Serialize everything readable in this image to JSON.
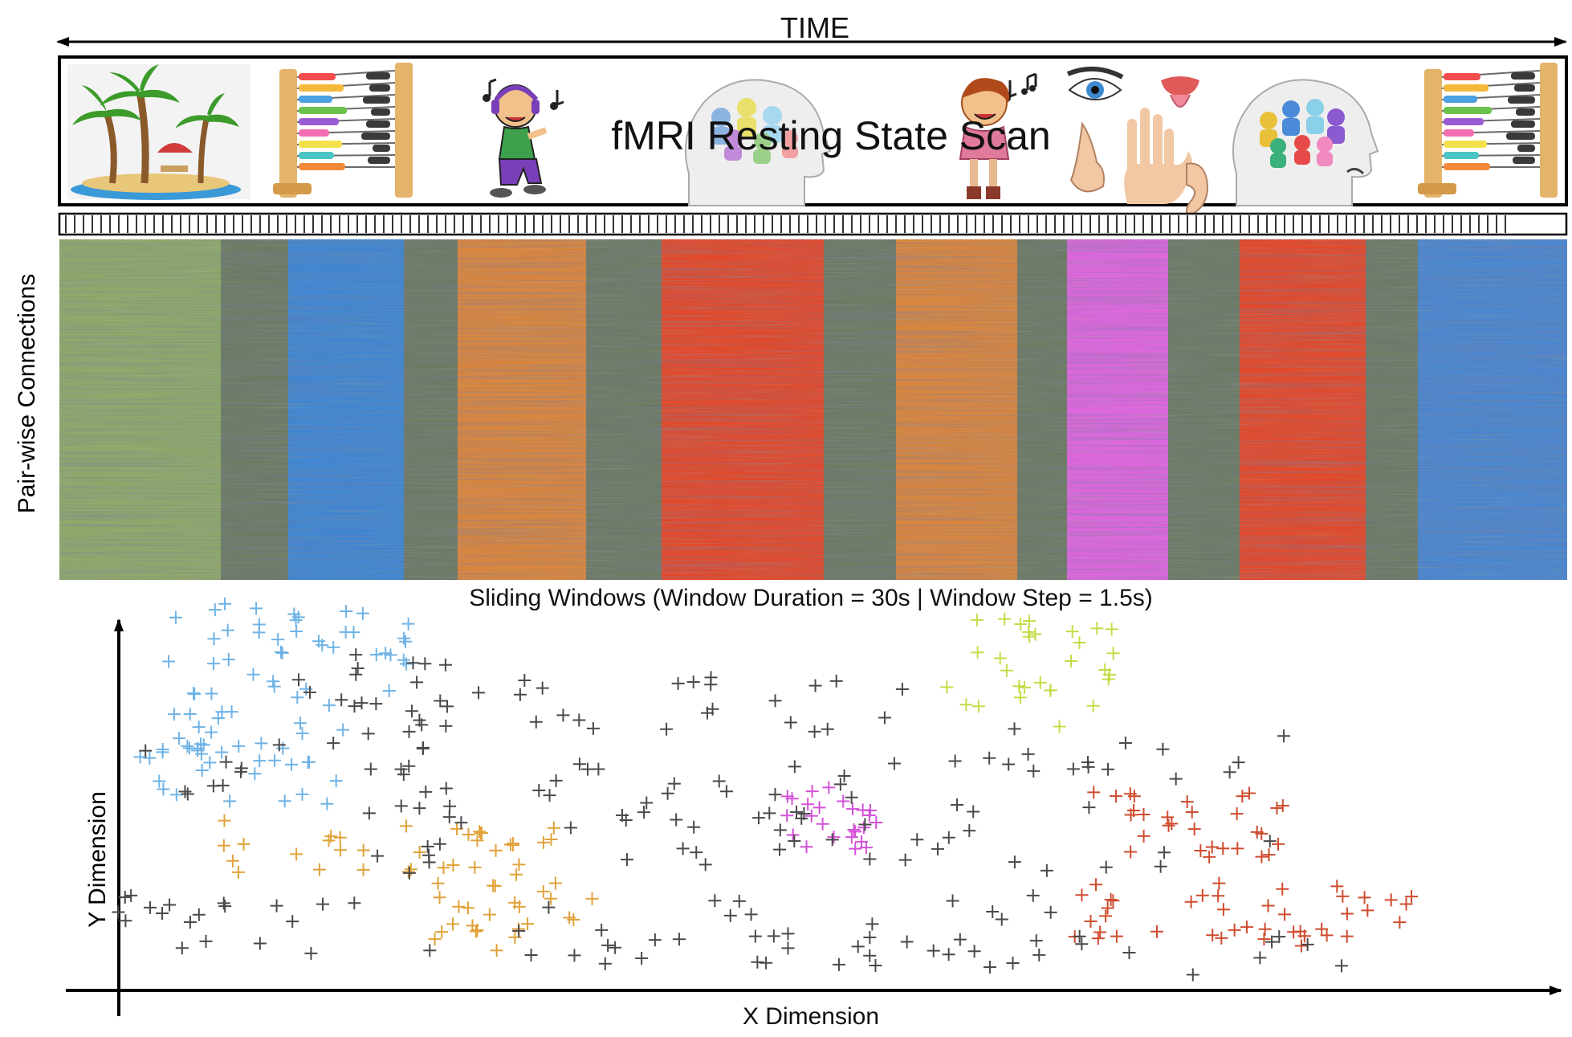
{
  "header": {
    "time_label": "TIME"
  },
  "scan_banner": {
    "title": "fMRI Resting State Scan",
    "icons": [
      "palm-island-icon",
      "abacus-icon",
      "music-listener-icon",
      "social-thoughts-head-icon",
      "singing-person-icon",
      "senses-icon",
      "crowded-thoughts-head-icon",
      "abacus-icon"
    ]
  },
  "heatmap": {
    "y_axis_label": "Pair-wise Connections",
    "x_axis_label": "Sliding Windows (Window Duration = 30s | Window Step = 1.5s)",
    "segments": [
      {
        "color": "#8fa86a"
      },
      {
        "color": "#6e7a64"
      },
      {
        "color": "#3f86d2"
      },
      {
        "color": "#6e7a64"
      },
      {
        "color": "#d9853e"
      },
      {
        "color": "#6e7a64"
      },
      {
        "color": "#e2492b"
      },
      {
        "color": "#6e7a64"
      },
      {
        "color": "#d9853e"
      },
      {
        "color": "#6e7a64"
      },
      {
        "color": "#dd66dd"
      },
      {
        "color": "#6e7a64"
      },
      {
        "color": "#e2492b"
      },
      {
        "color": "#6e7a64"
      },
      {
        "color": "#4a86cf"
      }
    ]
  },
  "scatter": {
    "x_axis_label": "X Dimension",
    "y_axis_label": "Y Dimension",
    "clusters": [
      {
        "color": "#6fb3e6"
      },
      {
        "color": "#c5dc48"
      },
      {
        "color": "#e1a23a"
      },
      {
        "color": "#d452d8"
      },
      {
        "color": "#cf4c2e"
      },
      {
        "color": "#4a4a4a"
      }
    ]
  }
}
